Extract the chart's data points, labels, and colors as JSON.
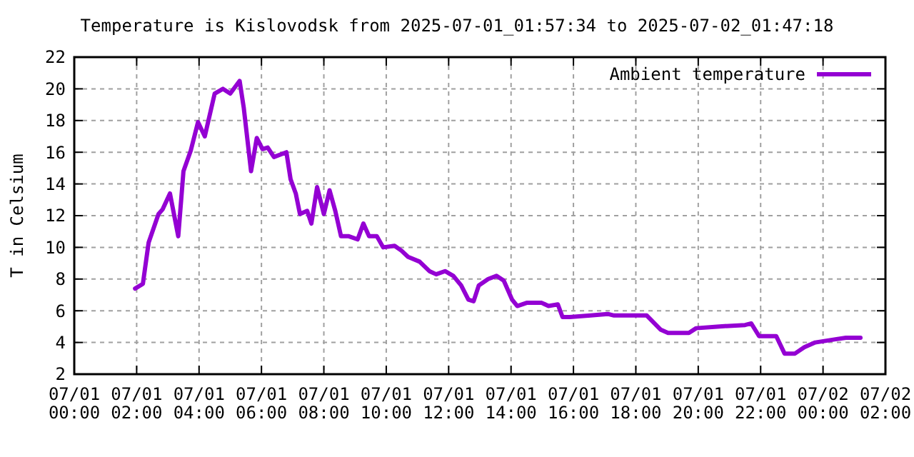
{
  "chart_data": {
    "type": "line",
    "title": "Temperature is Kislovodsk from 2025-07-01_01:57:34 to 2025-07-02_01:47:18",
    "ylabel": "T in Celsium",
    "xlim": [
      "2025-07-01T00:00",
      "2025-07-02T02:00"
    ],
    "xticks": [
      {
        "value": "2025-07-01T00:00",
        "label": "07/01 00:00"
      },
      {
        "value": "2025-07-01T02:00",
        "label": "07/01 02:00"
      },
      {
        "value": "2025-07-01T04:00",
        "label": "07/01 04:00"
      },
      {
        "value": "2025-07-01T06:00",
        "label": "07/01 06:00"
      },
      {
        "value": "2025-07-01T08:00",
        "label": "07/01 08:00"
      },
      {
        "value": "2025-07-01T10:00",
        "label": "07/01 10:00"
      },
      {
        "value": "2025-07-01T12:00",
        "label": "07/01 12:00"
      },
      {
        "value": "2025-07-01T14:00",
        "label": "07/01 14:00"
      },
      {
        "value": "2025-07-01T16:00",
        "label": "07/01 16:00"
      },
      {
        "value": "2025-07-01T18:00",
        "label": "07/01 18:00"
      },
      {
        "value": "2025-07-01T20:00",
        "label": "07/01 20:00"
      },
      {
        "value": "2025-07-01T22:00",
        "label": "07/01 22:00"
      },
      {
        "value": "2025-07-02T00:00",
        "label": "07/02 00:00"
      },
      {
        "value": "2025-07-02T02:00",
        "label": "07/02 02:00"
      }
    ],
    "ylim": [
      2,
      22
    ],
    "yticks": [
      2,
      4,
      6,
      8,
      10,
      12,
      14,
      16,
      18,
      20,
      22
    ],
    "grid": true,
    "legend": "top right",
    "marker": "none",
    "line_style": "solid",
    "x": [
      "2025-07-01T01:57",
      "2025-07-01T02:12",
      "2025-07-01T02:23",
      "2025-07-01T02:42",
      "2025-07-01T02:50",
      "2025-07-01T03:04",
      "2025-07-01T03:20",
      "2025-07-01T03:30",
      "2025-07-01T03:44",
      "2025-07-01T03:58",
      "2025-07-01T04:11",
      "2025-07-01T04:30",
      "2025-07-01T04:46",
      "2025-07-01T05:00",
      "2025-07-01T05:18",
      "2025-07-01T05:26",
      "2025-07-01T05:40",
      "2025-07-01T05:51",
      "2025-07-01T06:02",
      "2025-07-01T06:12",
      "2025-07-01T06:24",
      "2025-07-01T06:48",
      "2025-07-01T06:56",
      "2025-07-01T07:06",
      "2025-07-01T07:14",
      "2025-07-01T07:28",
      "2025-07-01T07:36",
      "2025-07-01T07:47",
      "2025-07-01T08:00",
      "2025-07-01T08:11",
      "2025-07-01T08:22",
      "2025-07-01T08:33",
      "2025-07-01T08:48",
      "2025-07-01T09:05",
      "2025-07-01T09:16",
      "2025-07-01T09:27",
      "2025-07-01T09:42",
      "2025-07-01T09:54",
      "2025-07-01T10:16",
      "2025-07-01T10:29",
      "2025-07-01T10:42",
      "2025-07-01T11:04",
      "2025-07-01T11:23",
      "2025-07-01T11:36",
      "2025-07-01T11:53",
      "2025-07-01T12:09",
      "2025-07-01T12:24",
      "2025-07-01T12:38",
      "2025-07-01T12:48",
      "2025-07-01T12:58",
      "2025-07-01T13:16",
      "2025-07-01T13:32",
      "2025-07-01T13:46",
      "2025-07-01T14:02",
      "2025-07-01T14:12",
      "2025-07-01T14:30",
      "2025-07-01T14:59",
      "2025-07-01T15:12",
      "2025-07-01T15:30",
      "2025-07-01T15:39",
      "2025-07-01T15:53",
      "2025-07-01T16:33",
      "2025-07-01T17:06",
      "2025-07-01T17:18",
      "2025-07-01T18:21",
      "2025-07-01T18:48",
      "2025-07-01T19:02",
      "2025-07-01T19:42",
      "2025-07-01T19:56",
      "2025-07-01T20:36",
      "2025-07-01T21:30",
      "2025-07-01T21:42",
      "2025-07-01T21:57",
      "2025-07-01T22:30",
      "2025-07-01T22:46",
      "2025-07-01T23:06",
      "2025-07-01T23:24",
      "2025-07-01T23:45",
      "2025-07-02T00:24",
      "2025-07-02T00:44",
      "2025-07-02T01:12"
    ],
    "series": [
      {
        "name": "Ambient temperature",
        "color": "#9400d3",
        "values": [
          7.4,
          7.7,
          10.3,
          12.1,
          12.4,
          13.4,
          10.7,
          14.8,
          16.1,
          17.9,
          17.0,
          19.7,
          20.0,
          19.7,
          20.5,
          18.8,
          14.8,
          16.9,
          16.2,
          16.3,
          15.7,
          16.0,
          14.3,
          13.4,
          12.1,
          12.3,
          11.5,
          13.8,
          12.1,
          13.6,
          12.3,
          10.7,
          10.7,
          10.5,
          11.5,
          10.7,
          10.7,
          10.0,
          10.1,
          9.8,
          9.4,
          9.1,
          8.5,
          8.3,
          8.5,
          8.2,
          7.6,
          6.7,
          6.6,
          7.6,
          8.0,
          8.2,
          7.9,
          6.7,
          6.3,
          6.5,
          6.5,
          6.3,
          6.4,
          5.6,
          5.6,
          5.7,
          5.8,
          5.7,
          5.7,
          4.8,
          4.6,
          4.6,
          4.9,
          5.0,
          5.1,
          5.2,
          4.4,
          4.4,
          3.3,
          3.3,
          3.7,
          4.0,
          4.2,
          4.3,
          4.3
        ]
      }
    ]
  }
}
